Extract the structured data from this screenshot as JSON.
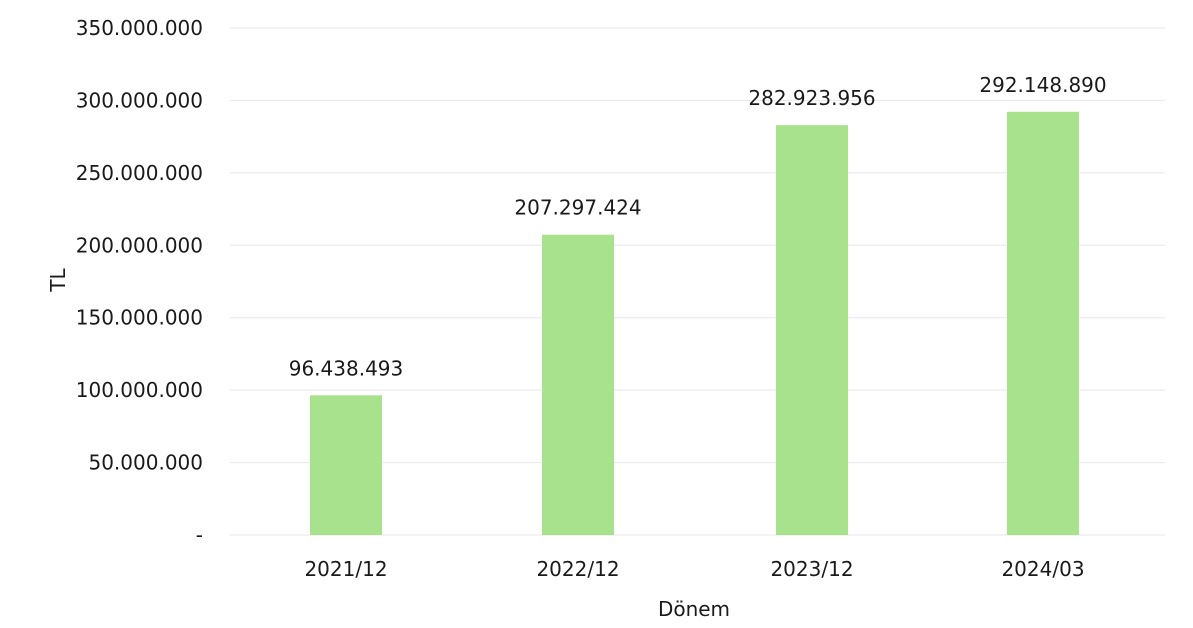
{
  "chart_data": {
    "type": "bar",
    "categories": [
      "2021/12",
      "2022/12",
      "2023/12",
      "2024/03"
    ],
    "values": [
      96438493,
      207297424,
      282923956,
      292148890
    ],
    "value_labels": [
      "96.438.493",
      "207.297.424",
      "282.923.956",
      "292.148.890"
    ],
    "title": "",
    "xlabel": "Dönem",
    "ylabel": "TL",
    "ylim": [
      0,
      350000000
    ],
    "yticks": [
      {
        "value": 0,
        "label": "-"
      },
      {
        "value": 50000000,
        "label": "50.000.000"
      },
      {
        "value": 100000000,
        "label": "100.000.000"
      },
      {
        "value": 150000000,
        "label": "150.000.000"
      },
      {
        "value": 200000000,
        "label": "200.000.000"
      },
      {
        "value": 250000000,
        "label": "250.000.000"
      },
      {
        "value": 300000000,
        "label": "300.000.000"
      },
      {
        "value": 350000000,
        "label": "350.000.000"
      }
    ],
    "grid": true,
    "legend": "none",
    "colors": {
      "bar": "#a9e28d",
      "grid": "#ececec"
    }
  }
}
